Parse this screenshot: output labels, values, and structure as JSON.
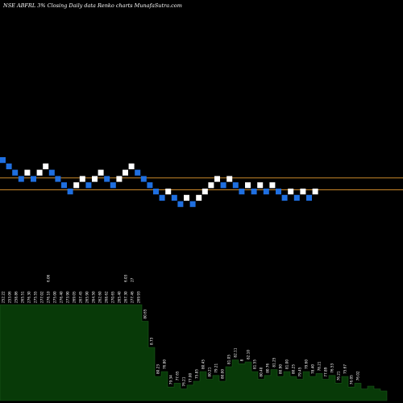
{
  "header": {
    "symbol": "NSE ABFRL",
    "change": "3% ",
    "description": "Closing Daily data  Renko  charts MunafaSutra.com"
  },
  "colors": {
    "background": "#000000",
    "up_brick": "#ffffff",
    "down_brick": "#1f6fe0",
    "level_line": "#c9872a",
    "volume_fill": "#083a08",
    "volume_outline": "#1c5a1c",
    "label_text": "#ffffff"
  },
  "chart_data": {
    "type": "renko",
    "title": "NSE ABFRL Closing Daily data Renko charts",
    "bricks": [
      {
        "level": 10,
        "dir": "down"
      },
      {
        "level": 9,
        "dir": "down"
      },
      {
        "level": 8,
        "dir": "down"
      },
      {
        "level": 7,
        "dir": "down"
      },
      {
        "level": 8,
        "dir": "up"
      },
      {
        "level": 7,
        "dir": "down"
      },
      {
        "level": 8,
        "dir": "up"
      },
      {
        "level": 9,
        "dir": "up"
      },
      {
        "level": 8,
        "dir": "down"
      },
      {
        "level": 7,
        "dir": "down"
      },
      {
        "level": 6,
        "dir": "down"
      },
      {
        "level": 5,
        "dir": "down"
      },
      {
        "level": 6,
        "dir": "up"
      },
      {
        "level": 7,
        "dir": "up"
      },
      {
        "level": 6,
        "dir": "down"
      },
      {
        "level": 7,
        "dir": "up"
      },
      {
        "level": 8,
        "dir": "up"
      },
      {
        "level": 7,
        "dir": "down"
      },
      {
        "level": 6,
        "dir": "down"
      },
      {
        "level": 7,
        "dir": "up"
      },
      {
        "level": 8,
        "dir": "up"
      },
      {
        "level": 9,
        "dir": "up"
      },
      {
        "level": 8,
        "dir": "down"
      },
      {
        "level": 7,
        "dir": "down"
      },
      {
        "level": 6,
        "dir": "down"
      },
      {
        "level": 5,
        "dir": "down"
      },
      {
        "level": 4,
        "dir": "down"
      },
      {
        "level": 5,
        "dir": "up"
      },
      {
        "level": 4,
        "dir": "down"
      },
      {
        "level": 3,
        "dir": "down"
      },
      {
        "level": 4,
        "dir": "up"
      },
      {
        "level": 3,
        "dir": "down"
      },
      {
        "level": 4,
        "dir": "up"
      },
      {
        "level": 5,
        "dir": "up"
      },
      {
        "level": 6,
        "dir": "up"
      },
      {
        "level": 7,
        "dir": "up"
      },
      {
        "level": 6,
        "dir": "down"
      },
      {
        "level": 7,
        "dir": "up"
      },
      {
        "level": 6,
        "dir": "down"
      },
      {
        "level": 5,
        "dir": "down"
      },
      {
        "level": 6,
        "dir": "up"
      },
      {
        "level": 5,
        "dir": "down"
      },
      {
        "level": 6,
        "dir": "up"
      },
      {
        "level": 5,
        "dir": "down"
      },
      {
        "level": 6,
        "dir": "up"
      },
      {
        "level": 5,
        "dir": "down"
      },
      {
        "level": 4,
        "dir": "down"
      },
      {
        "level": 5,
        "dir": "up"
      },
      {
        "level": 4,
        "dir": "down"
      },
      {
        "level": 5,
        "dir": "up"
      },
      {
        "level": 4,
        "dir": "down"
      },
      {
        "level": 5,
        "dir": "up"
      }
    ],
    "horizontal_levels": [
      6.7,
      4.8
    ],
    "volume_bars": [
      3,
      3,
      3,
      3,
      3,
      3,
      3,
      3,
      3,
      3,
      3,
      3,
      3,
      3,
      3,
      3,
      3,
      3,
      3,
      3,
      3,
      3,
      0.82,
      0.55,
      0.25,
      0.3,
      0.14,
      0.18,
      0.12,
      0.16,
      0.2,
      0.3,
      0.22,
      0.26,
      0.2,
      0.35,
      0.42,
      0.38,
      0.4,
      0.3,
      0.22,
      0.26,
      0.32,
      0.25,
      0.3,
      0.25,
      0.22,
      0.3,
      0.25,
      0.28,
      0.22,
      0.26,
      0.18,
      0.25,
      0.14,
      0.18,
      0.12,
      0.15,
      0.12,
      0.1
    ],
    "volume_labels": [
      {
        "i": 0,
        "text": "252.22"
      },
      {
        "i": 1,
        "text": "253.06"
      },
      {
        "i": 2,
        "text": "258.86"
      },
      {
        "i": 3,
        "text": "265.51"
      },
      {
        "i": 4,
        "text": "276.30"
      },
      {
        "i": 5,
        "text": "275.55"
      },
      {
        "i": 6,
        "text": "277.02"
      },
      {
        "i": 7,
        "text": "276.10"
      },
      {
        "i": 8,
        "text": "275.00"
      },
      {
        "i": 9,
        "text": "276.40"
      },
      {
        "i": 10,
        "text": "273.90"
      },
      {
        "i": 11,
        "text": "269.05"
      },
      {
        "i": 12,
        "text": "267.45"
      },
      {
        "i": 13,
        "text": "265.90"
      },
      {
        "i": 14,
        "text": "264.50"
      },
      {
        "i": 15,
        "text": "262.60"
      },
      {
        "i": 16,
        "text": "268.62"
      },
      {
        "i": 17,
        "text": "270.65"
      },
      {
        "i": 18,
        "text": "265.40"
      },
      {
        "i": 19,
        "text": "267.30"
      },
      {
        "i": 20,
        "text": "277.46"
      },
      {
        "i": 21,
        "text": "269.93"
      },
      {
        "i": 22,
        "text": "80.65"
      },
      {
        "i": 23,
        "text": "8.73"
      },
      {
        "i": 24,
        "text": "80.23"
      },
      {
        "i": 25,
        "text": "76.80"
      },
      {
        "i": 26,
        "text": "79.34"
      },
      {
        "i": 27,
        "text": "77.65"
      },
      {
        "i": 28,
        "text": "76.21"
      },
      {
        "i": 29,
        "text": "77.00"
      },
      {
        "i": 30,
        "text": "75.85"
      },
      {
        "i": 31,
        "text": "80.45"
      },
      {
        "i": 32,
        "text": "80.21"
      },
      {
        "i": 33,
        "text": "79.21"
      },
      {
        "i": 34,
        "text": "80.00"
      },
      {
        "i": 35,
        "text": "81.05"
      },
      {
        "i": 36,
        "text": "82.11"
      },
      {
        "i": 37,
        "text": "8"
      },
      {
        "i": 38,
        "text": "82.10"
      },
      {
        "i": 39,
        "text": "81.55"
      },
      {
        "i": 40,
        "text": "80.40"
      },
      {
        "i": 41,
        "text": "80.76"
      },
      {
        "i": 42,
        "text": "81.25"
      },
      {
        "i": 43,
        "text": "80.90"
      },
      {
        "i": 44,
        "text": "81.00"
      },
      {
        "i": 45,
        "text": "80.25"
      },
      {
        "i": 46,
        "text": "79.45"
      },
      {
        "i": 47,
        "text": "79.60"
      },
      {
        "i": 48,
        "text": "78.40"
      },
      {
        "i": 49,
        "text": "78.21"
      },
      {
        "i": 50,
        "text": "77.89"
      },
      {
        "i": 51,
        "text": "76.53"
      },
      {
        "i": 52,
        "text": "76.21"
      },
      {
        "i": 53,
        "text": "75.67"
      },
      {
        "i": 54,
        "text": "76.05"
      },
      {
        "i": 55,
        "text": "76.02"
      }
    ],
    "volume_top_labels": [
      {
        "i": 7,
        "text": "6.06"
      },
      {
        "i": 19,
        "text": "6.03"
      },
      {
        "i": 20,
        "text": "27"
      }
    ]
  }
}
